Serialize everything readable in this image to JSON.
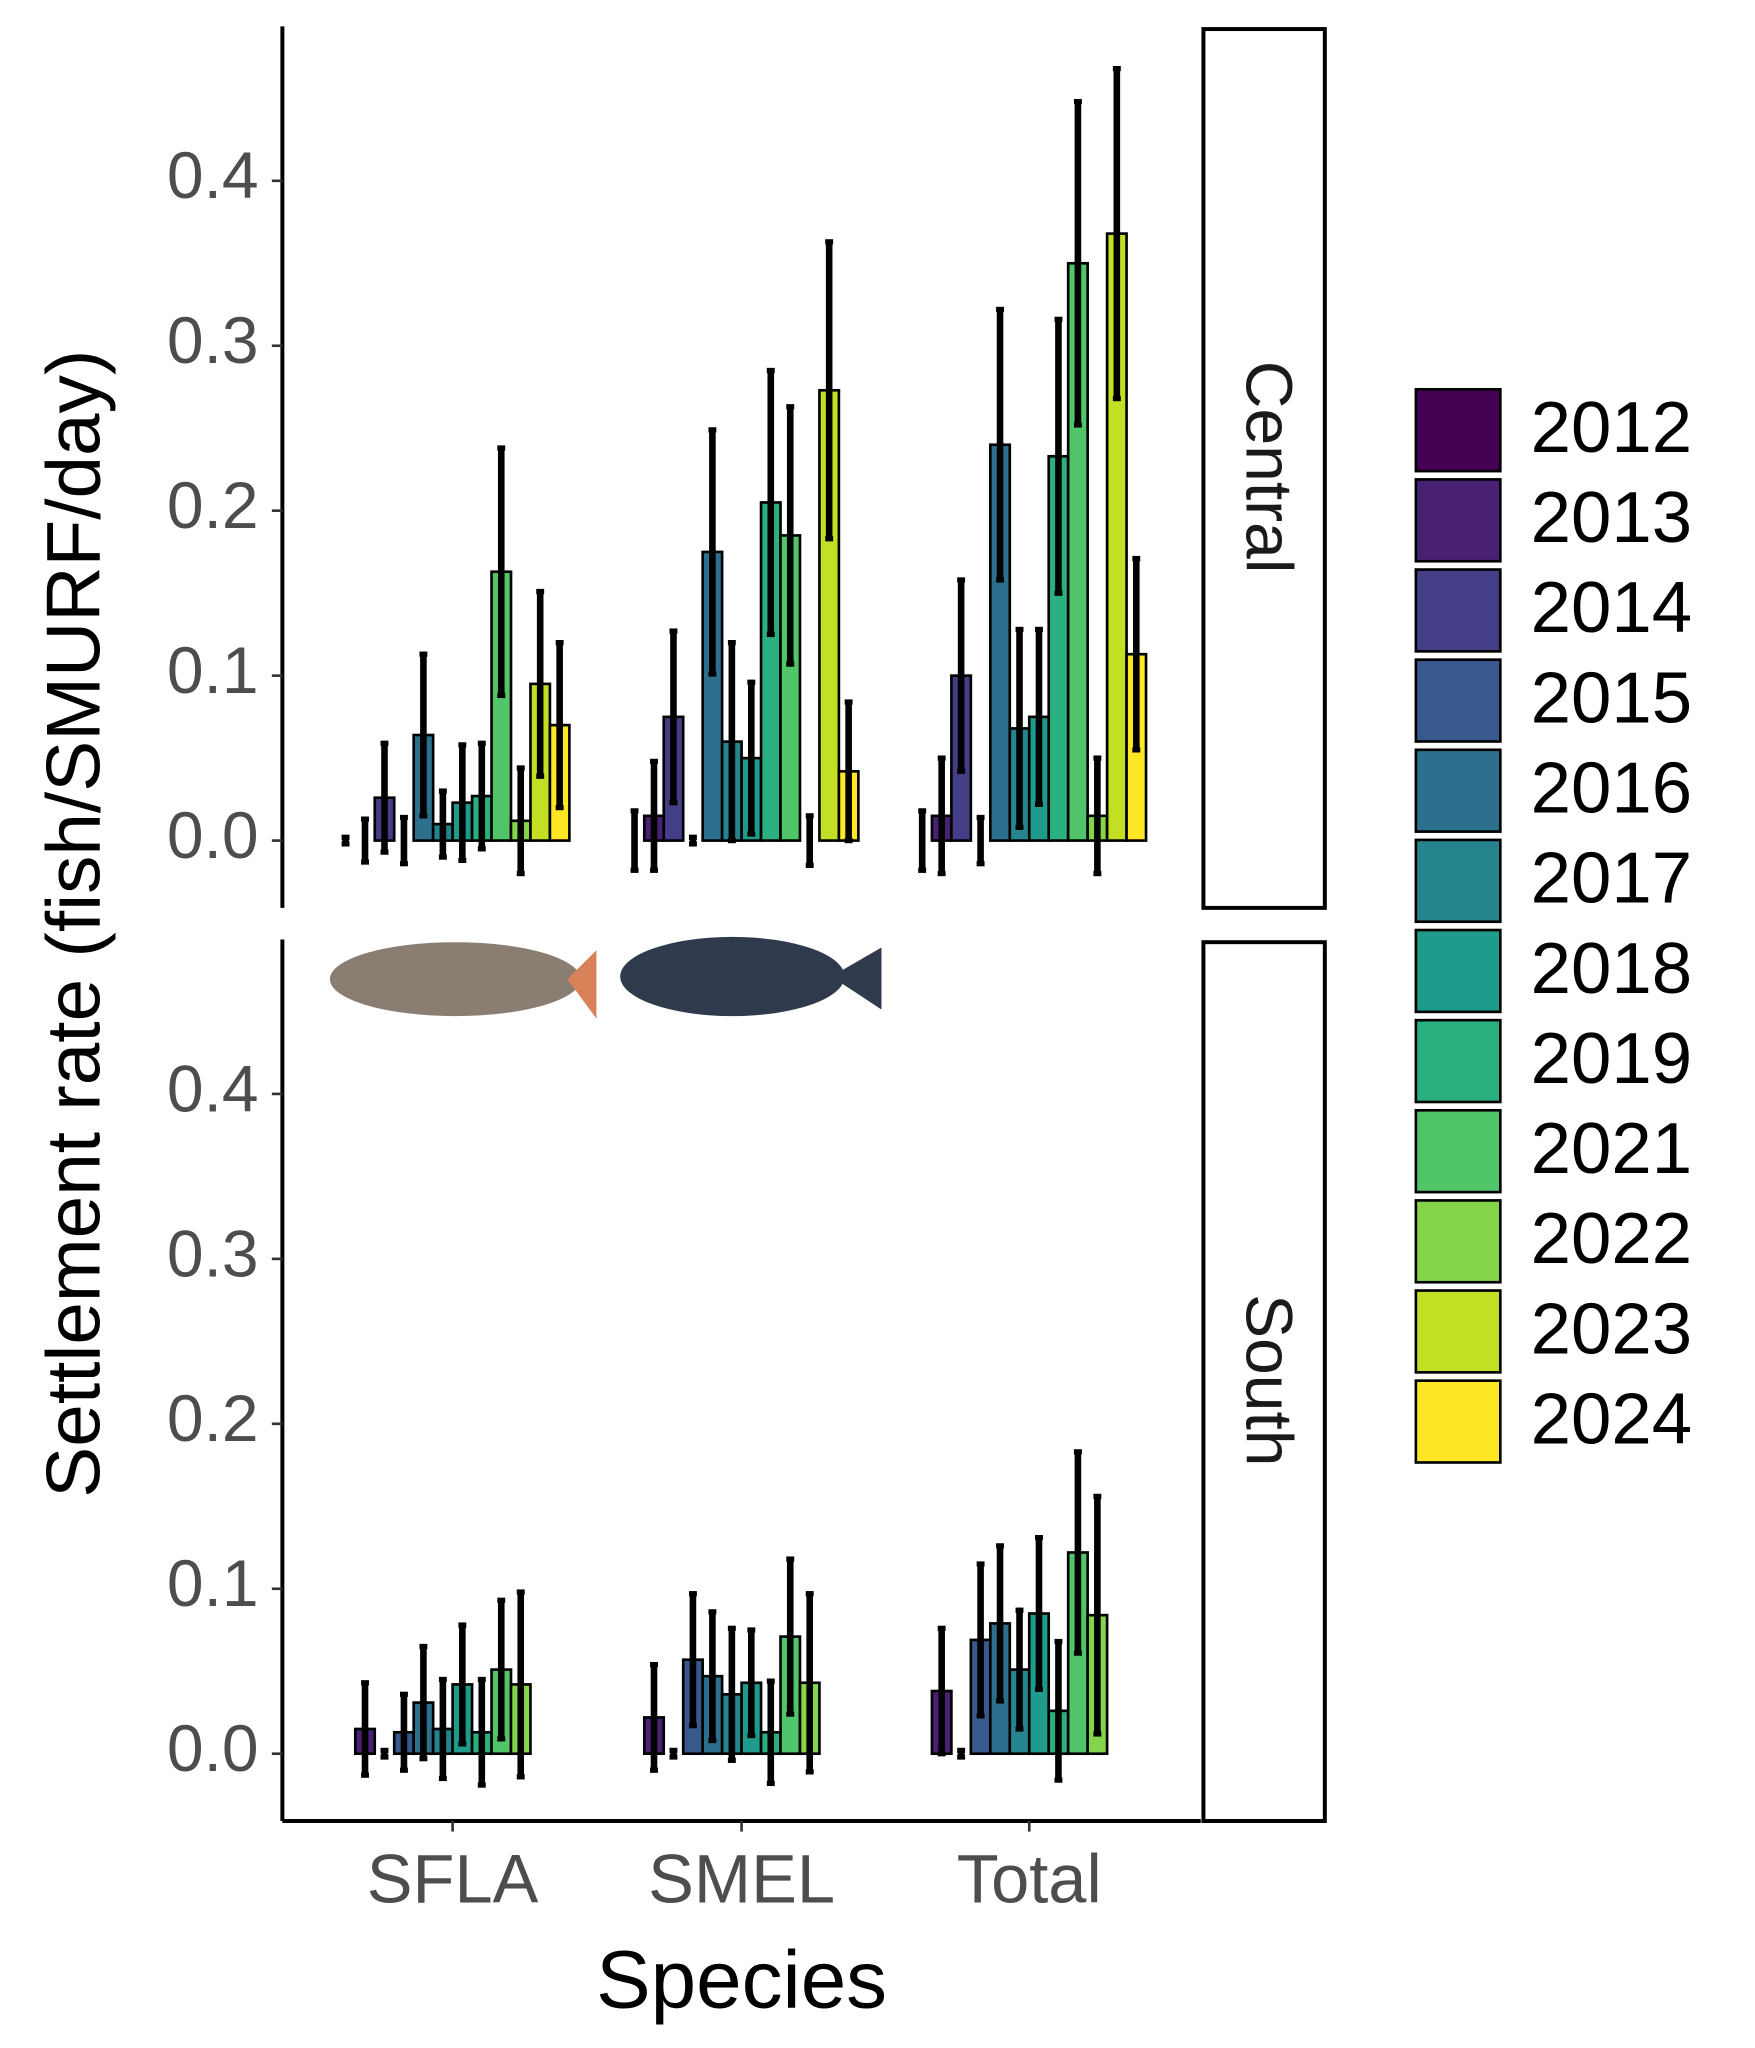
{
  "chart_data": {
    "type": "bar",
    "xlabel": "Species",
    "ylabel": "Settlement rate  (fish/SMURF/day)",
    "categories": [
      "SFLA",
      "SMEL",
      "Total"
    ],
    "ylim": [
      -0.0408,
      0.4936
    ],
    "yticks": [
      {
        "value": 0,
        "label": "0.0"
      },
      0.1,
      0.2,
      0.3,
      0.4
    ],
    "series": [
      {
        "name": "2012",
        "color": "#440154"
      },
      {
        "name": "2013",
        "color": "#482173"
      },
      {
        "name": "2014",
        "color": "#433E85"
      },
      {
        "name": "2015",
        "color": "#38598C"
      },
      {
        "name": "2016",
        "color": "#2D708E"
      },
      {
        "name": "2017",
        "color": "#25858E"
      },
      {
        "name": "2018",
        "color": "#1E9B8A"
      },
      {
        "name": "2019",
        "color": "#2BB07F"
      },
      {
        "name": "2021",
        "color": "#51C56A"
      },
      {
        "name": "2022",
        "color": "#85D54A"
      },
      {
        "name": "2023",
        "color": "#C2DF23"
      },
      {
        "name": "2024",
        "color": "#FDE725"
      }
    ],
    "panels": [
      {
        "label": "Central",
        "values": [
          [
            0,
            0,
            0
          ],
          [
            0,
            0.015,
            0.015
          ],
          [
            0.026,
            0.075,
            0.1
          ],
          [
            0,
            0,
            0
          ],
          [
            0.064,
            0.175,
            0.24
          ],
          [
            0.01,
            0.06,
            0.068
          ],
          [
            0.023,
            0.05,
            0.075
          ],
          [
            0.027,
            0.205,
            0.233
          ],
          [
            0.163,
            0.185,
            0.35
          ],
          [
            0.012,
            0,
            0.015
          ],
          [
            0.095,
            0.273,
            0.368
          ],
          [
            0.07,
            0.042,
            0.113
          ]
        ],
        "errors": [
          [
            0.002,
            0.018,
            0.018
          ],
          [
            0.013,
            0.033,
            0.035
          ],
          [
            0.033,
            0.052,
            0.058
          ],
          [
            0.014,
            0.002,
            0.014
          ],
          [
            0.049,
            0.074,
            0.082
          ],
          [
            0.02,
            0.06,
            0.06
          ],
          [
            0.035,
            0.046,
            0.053
          ],
          [
            0.032,
            0.08,
            0.083
          ],
          [
            0.075,
            0.078,
            0.098
          ],
          [
            0.032,
            0.015,
            0.035
          ],
          [
            0.056,
            0.09,
            0.1
          ],
          [
            0.05,
            0.042,
            0.058
          ]
        ]
      },
      {
        "label": "South",
        "values": [
          [
            null,
            null,
            null
          ],
          [
            0.015,
            0.022,
            0.038
          ],
          [
            0,
            0,
            0
          ],
          [
            0.013,
            0.057,
            0.069
          ],
          [
            0.031,
            0.047,
            0.079
          ],
          [
            0.015,
            0.036,
            0.051
          ],
          [
            0.042,
            0.043,
            0.085
          ],
          [
            0.013,
            0.013,
            0.026
          ],
          [
            0.051,
            0.071,
            0.122
          ],
          [
            0.042,
            0.043,
            0.084
          ],
          [
            null,
            null,
            null
          ],
          [
            null,
            null,
            null
          ]
        ],
        "errors": [
          [
            null,
            null,
            null
          ],
          [
            0.028,
            0.032,
            0.038
          ],
          [
            0.002,
            0.002,
            0.002
          ],
          [
            0.023,
            0.04,
            0.046
          ],
          [
            0.034,
            0.039,
            0.047
          ],
          [
            0.03,
            0.04,
            0.036
          ],
          [
            0.036,
            0.032,
            0.046
          ],
          [
            0.032,
            0.031,
            0.042
          ],
          [
            0.042,
            0.047,
            0.061
          ],
          [
            0.056,
            0.054,
            0.072
          ],
          [
            null,
            null,
            null
          ],
          [
            null,
            null,
            null
          ]
        ]
      }
    ]
  }
}
